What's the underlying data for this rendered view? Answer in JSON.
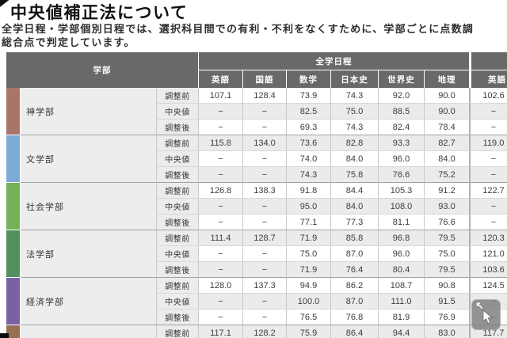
{
  "page": {
    "title": "中央値補正法について",
    "intro_line1": "全学日程・学部個別日程では、選択科目間での有利・不利をなくすために、学部ごとに点数調",
    "intro_line2": "総合点で判定しています。"
  },
  "colors": {
    "header_bg": "#696969",
    "alt_row_bg": "#ebebeb",
    "white_row_bg": "#ffffff",
    "label_col_bg": "#ececec",
    "faculty_separator": "#a0a0a0"
  },
  "table": {
    "header": {
      "faculty_label": "学部",
      "group1_label": "全学日程",
      "group2_label": "",
      "group1_subjects": [
        "英語",
        "国語",
        "数学",
        "日本史",
        "世界史",
        "地理"
      ],
      "group2_subjects": [
        "英語"
      ]
    },
    "row_labels": [
      "調整前",
      "中央値",
      "調整後"
    ],
    "faculties": [
      {
        "name": "神学部",
        "color": "#a9756b",
        "rows": [
          [
            "107.1",
            "128.4",
            "73.9",
            "74.3",
            "92.0",
            "90.0",
            "102.6"
          ],
          [
            "−",
            "−",
            "82.5",
            "75.0",
            "88.5",
            "90.0",
            "−"
          ],
          [
            "−",
            "−",
            "69.3",
            "74.3",
            "82.4",
            "78.4",
            "−"
          ]
        ]
      },
      {
        "name": "文学部",
        "color": "#7bacd8",
        "rows": [
          [
            "115.8",
            "134.0",
            "73.6",
            "82.8",
            "93.3",
            "82.7",
            "119.0"
          ],
          [
            "−",
            "−",
            "74.0",
            "84.0",
            "96.0",
            "84.0",
            "−"
          ],
          [
            "−",
            "−",
            "74.3",
            "75.8",
            "76.6",
            "75.2",
            "−"
          ]
        ]
      },
      {
        "name": "社会学部",
        "color": "#74b258",
        "rows": [
          [
            "126.8",
            "138.3",
            "91.8",
            "84.4",
            "105.3",
            "91.2",
            "122.7"
          ],
          [
            "−",
            "−",
            "95.0",
            "84.0",
            "108.0",
            "93.0",
            "−"
          ],
          [
            "−",
            "−",
            "77.1",
            "77.3",
            "81.1",
            "76.6",
            "−"
          ]
        ]
      },
      {
        "name": "法学部",
        "color": "#548f60",
        "rows": [
          [
            "111.4",
            "128.7",
            "71.9",
            "85.8",
            "96.8",
            "79.5",
            "120.3"
          ],
          [
            "−",
            "−",
            "75.0",
            "87.0",
            "96.0",
            "75.0",
            "121.0"
          ],
          [
            "−",
            "−",
            "71.9",
            "76.4",
            "80.4",
            "79.5",
            "103.6"
          ]
        ]
      },
      {
        "name": "経済学部",
        "color": "#7a61a4",
        "rows": [
          [
            "128.0",
            "137.3",
            "94.9",
            "86.2",
            "108.7",
            "90.8",
            "124.5"
          ],
          [
            "−",
            "−",
            "100.0",
            "87.0",
            "111.0",
            "91.5",
            "−"
          ],
          [
            "−",
            "−",
            "76.5",
            "76.8",
            "81.9",
            "76.9",
            "−"
          ]
        ]
      },
      {
        "name": "",
        "color": "#967052",
        "rows": [
          [
            "117.1",
            "128.2",
            "75.9",
            "86.4",
            "94.4",
            "83.0",
            "117.7"
          ]
        ]
      }
    ]
  },
  "cursor_overlay": {
    "nw_arrow_glyph": "↖"
  }
}
